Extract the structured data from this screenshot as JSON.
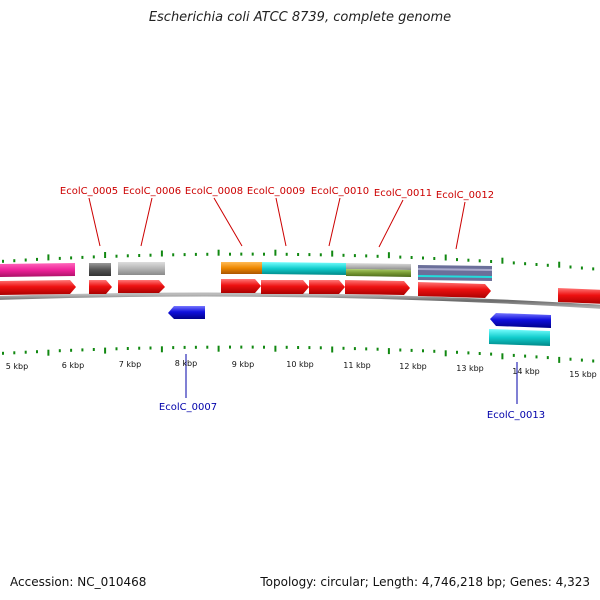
{
  "title": "Escherichia coli ATCC 8739, complete genome",
  "footer": {
    "accession": "Accession: NC_010468",
    "summary": "Topology: circular; Length: 4,746,218 bp; Genes: 4,323"
  },
  "colors": {
    "forward_cds": "#ee1111",
    "reverse_cds": "#1010dd",
    "forward_label": "#cc0000",
    "reverse_label": "#0000aa",
    "tick": "#118811",
    "backbone": "#888888"
  },
  "scale": {
    "unit": "kbp",
    "labels": [
      "5 kbp",
      "6 kbp",
      "7 kbp",
      "8 kbp",
      "9 kbp",
      "10 kbp",
      "11 kbp",
      "12 kbp",
      "13 kbp",
      "14 kbp",
      "15 kbp"
    ]
  },
  "genes": [
    {
      "id": "EcolC_0005",
      "strand": "forward",
      "labeled": true
    },
    {
      "id": "EcolC_0006",
      "strand": "forward",
      "labeled": true
    },
    {
      "id": "EcolC_0007",
      "strand": "reverse",
      "labeled": true
    },
    {
      "id": "EcolC_0008",
      "strand": "forward",
      "labeled": true
    },
    {
      "id": "EcolC_0009",
      "strand": "forward",
      "labeled": true
    },
    {
      "id": "EcolC_0010",
      "strand": "forward",
      "labeled": true
    },
    {
      "id": "EcolC_0011",
      "strand": "forward",
      "labeled": true
    },
    {
      "id": "EcolC_0012",
      "strand": "forward",
      "labeled": true
    },
    {
      "id": "EcolC_0013",
      "strand": "reverse",
      "labeled": true
    }
  ]
}
